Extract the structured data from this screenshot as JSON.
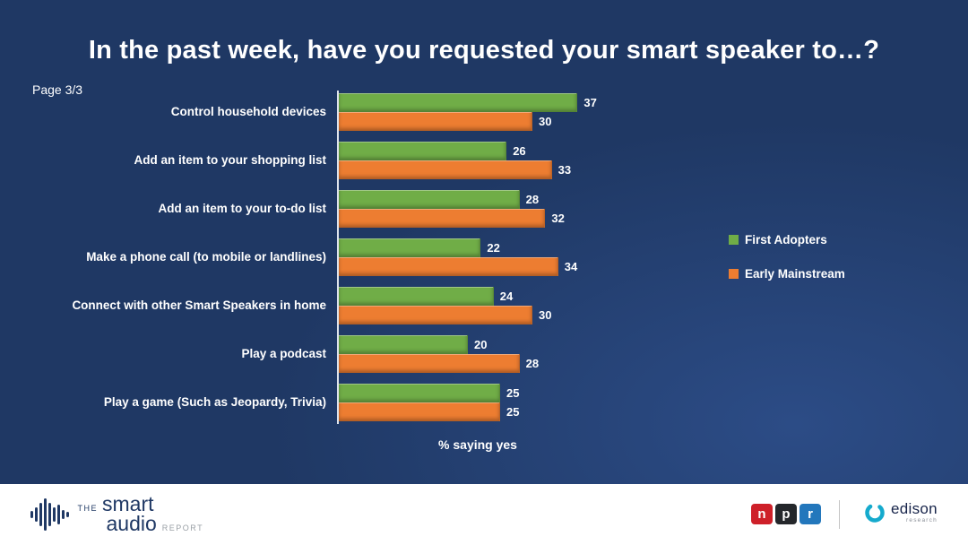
{
  "title": "In the past week, have you requested your smart speaker to…?",
  "page_label": "Page 3/3",
  "chart_data": {
    "type": "bar",
    "orientation": "horizontal",
    "title": "In the past week, have you requested your smart speaker to…?",
    "categories": [
      "Control household devices",
      "Add an item to your shopping list",
      "Add an item to your to-do list",
      "Make a phone call (to mobile or landlines)",
      "Connect with other Smart Speakers in home",
      "Play a podcast",
      "Play a game (Such as Jeopardy, Trivia)"
    ],
    "series": [
      {
        "name": "First Adopters",
        "color": "#70AD47",
        "values": [
          37,
          26,
          28,
          22,
          24,
          20,
          25
        ]
      },
      {
        "name": "Early Mainstream",
        "color": "#ED7D31",
        "values": [
          30,
          33,
          32,
          34,
          30,
          28,
          25
        ]
      }
    ],
    "xlabel": "% saying yes",
    "ylabel": "",
    "xlim": [
      0,
      40
    ],
    "grid": false,
    "legend_position": "right",
    "value_labels": true
  },
  "legend": {
    "items": [
      {
        "label": "First Adopters",
        "color": "#70AD47"
      },
      {
        "label": "Early Mainstream",
        "color": "#ED7D31"
      }
    ]
  },
  "footer": {
    "brand": {
      "the": "THE",
      "smart": "smart",
      "audio": "audio",
      "report": "REPORT"
    },
    "npr": {
      "letters": [
        "n",
        "p",
        "r"
      ],
      "colors": [
        "#CE2029",
        "#24272b",
        "#2377BC"
      ]
    },
    "edison": {
      "name": "edison",
      "subtitle": "research"
    }
  },
  "colors": {
    "background": "#1F3864",
    "bar_green": "#70AD47",
    "bar_orange": "#ED7D31",
    "text": "#FFFFFF",
    "footer_background": "#FFFFFF"
  }
}
